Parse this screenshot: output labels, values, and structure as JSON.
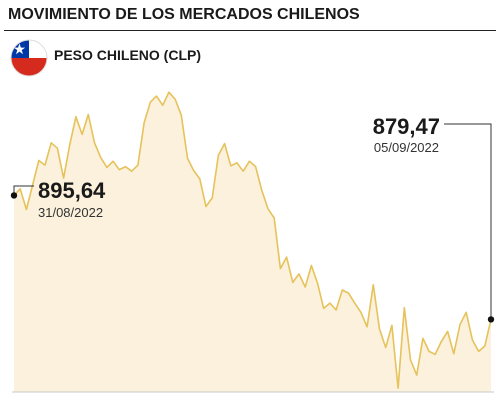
{
  "header": {
    "title": "MOVIMIENTO DE LOS MERCADOS CHILENOS",
    "subtitle": "PESO CHILENO (CLP)"
  },
  "colors": {
    "line": "#e6c25a",
    "area": "#fbf1dc",
    "text": "#1a1a1a",
    "flag_red": "#d52b1e",
    "flag_blue": "#0039a6",
    "flag_white": "#ffffff"
  },
  "chart_data": {
    "type": "area",
    "title": "MOVIMIENTO DE LOS MERCADOS CHILENOS",
    "subtitle": "PESO CHILENO (CLP)",
    "xlabel": "",
    "ylabel": "",
    "grid": false,
    "legend": "none",
    "ylim": [
      870,
      912
    ],
    "start_label": {
      "value": "895,64",
      "date": "31/08/2022",
      "y": 895.64
    },
    "end_label": {
      "value": "879,47",
      "date": "05/09/2022",
      "y": 879.47
    },
    "series": [
      {
        "values": [
          895.64,
          896.5,
          893.8,
          897.0,
          900.2,
          899.6,
          902.5,
          901.8,
          897.9,
          902.3,
          905.9,
          903.6,
          906.2,
          902.5,
          900.6,
          899.3,
          900.1,
          899.0,
          899.4,
          898.8,
          899.6,
          905.1,
          907.8,
          908.6,
          907.4,
          909.1,
          908.2,
          906.1,
          900.5,
          898.9,
          897.8,
          894.2,
          895.3,
          900.9,
          902.4,
          899.5,
          899.9,
          898.8,
          900.1,
          899.4,
          896.3,
          893.9,
          892.7,
          886.1,
          887.6,
          884.3,
          885.4,
          883.7,
          886.5,
          884.2,
          880.9,
          881.6,
          880.7,
          883.3,
          882.9,
          881.6,
          880.4,
          878.5,
          884.0,
          878.2,
          875.8,
          878.7,
          870.5,
          881.0,
          874.2,
          872.2,
          877.0,
          875.3,
          874.9,
          876.6,
          877.9,
          875.0,
          878.8,
          880.4,
          876.8,
          875.3,
          876.0,
          879.47
        ]
      }
    ]
  }
}
